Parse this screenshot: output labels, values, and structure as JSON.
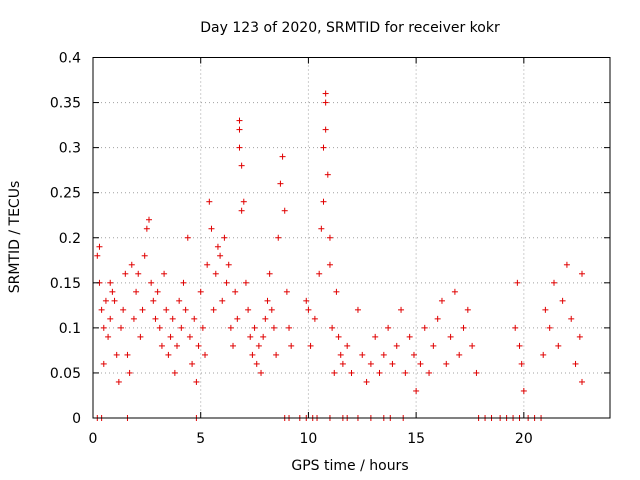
{
  "chart_data": {
    "type": "scatter",
    "title": "Day 123 of 2020, SRMTID for receiver kokr",
    "xlabel": "GPS time / hours",
    "ylabel": "SRMTID / TECUs",
    "xlim": [
      0,
      24
    ],
    "ylim": [
      0,
      0.4
    ],
    "xticks": [
      0,
      5,
      10,
      15,
      20
    ],
    "yticks": [
      0,
      0.05,
      0.1,
      0.15,
      0.2,
      0.25,
      0.3,
      0.35,
      0.4
    ],
    "ytick_labels": [
      "0",
      "0.05",
      "0.1",
      "0.15",
      "0.2",
      "0.25",
      "0.3",
      "0.35",
      "0.4"
    ],
    "xtick_labels": [
      "0",
      "5",
      "10",
      "15",
      "20"
    ],
    "marker": "+",
    "grid": true,
    "color": "#e00000",
    "series": [
      {
        "name": "SRMTID",
        "points": [
          [
            0.2,
            0.0
          ],
          [
            0.4,
            0.0
          ],
          [
            1.6,
            0.0
          ],
          [
            4.8,
            0.0
          ],
          [
            8.9,
            0.0
          ],
          [
            9.1,
            0.0
          ],
          [
            9.6,
            0.0
          ],
          [
            9.9,
            0.0
          ],
          [
            10.2,
            0.0
          ],
          [
            10.4,
            0.0
          ],
          [
            11.0,
            0.0
          ],
          [
            11.6,
            0.0
          ],
          [
            11.8,
            0.0
          ],
          [
            12.3,
            0.0
          ],
          [
            12.9,
            0.0
          ],
          [
            13.5,
            0.0
          ],
          [
            13.8,
            0.0
          ],
          [
            14.4,
            0.0
          ],
          [
            17.9,
            0.0
          ],
          [
            18.2,
            0.0
          ],
          [
            18.5,
            0.0
          ],
          [
            18.9,
            0.0
          ],
          [
            19.2,
            0.0
          ],
          [
            19.5,
            0.0
          ],
          [
            19.8,
            0.0
          ],
          [
            20.2,
            0.0
          ],
          [
            20.5,
            0.0
          ],
          [
            20.8,
            0.0
          ],
          [
            0.2,
            0.18
          ],
          [
            0.3,
            0.19
          ],
          [
            0.3,
            0.15
          ],
          [
            0.4,
            0.12
          ],
          [
            0.5,
            0.1
          ],
          [
            0.5,
            0.06
          ],
          [
            0.6,
            0.13
          ],
          [
            0.7,
            0.09
          ],
          [
            0.8,
            0.11
          ],
          [
            0.8,
            0.15
          ],
          [
            0.9,
            0.14
          ],
          [
            1.0,
            0.13
          ],
          [
            1.1,
            0.07
          ],
          [
            1.2,
            0.04
          ],
          [
            1.3,
            0.1
          ],
          [
            1.4,
            0.12
          ],
          [
            1.5,
            0.16
          ],
          [
            1.6,
            0.07
          ],
          [
            1.7,
            0.05
          ],
          [
            1.8,
            0.17
          ],
          [
            1.9,
            0.11
          ],
          [
            2.0,
            0.14
          ],
          [
            2.1,
            0.16
          ],
          [
            2.2,
            0.09
          ],
          [
            2.3,
            0.12
          ],
          [
            2.4,
            0.18
          ],
          [
            2.5,
            0.21
          ],
          [
            2.6,
            0.22
          ],
          [
            2.7,
            0.15
          ],
          [
            2.8,
            0.13
          ],
          [
            2.9,
            0.11
          ],
          [
            3.0,
            0.14
          ],
          [
            3.1,
            0.1
          ],
          [
            3.2,
            0.08
          ],
          [
            3.3,
            0.16
          ],
          [
            3.4,
            0.12
          ],
          [
            3.5,
            0.07
          ],
          [
            3.6,
            0.09
          ],
          [
            3.7,
            0.11
          ],
          [
            3.8,
            0.05
          ],
          [
            3.9,
            0.08
          ],
          [
            4.0,
            0.13
          ],
          [
            4.1,
            0.1
          ],
          [
            4.2,
            0.15
          ],
          [
            4.3,
            0.12
          ],
          [
            4.4,
            0.2
          ],
          [
            4.5,
            0.09
          ],
          [
            4.6,
            0.06
          ],
          [
            4.7,
            0.11
          ],
          [
            4.8,
            0.04
          ],
          [
            4.9,
            0.08
          ],
          [
            5.0,
            0.14
          ],
          [
            5.1,
            0.1
          ],
          [
            5.2,
            0.07
          ],
          [
            5.3,
            0.17
          ],
          [
            5.4,
            0.24
          ],
          [
            5.5,
            0.21
          ],
          [
            5.6,
            0.12
          ],
          [
            5.7,
            0.16
          ],
          [
            5.8,
            0.19
          ],
          [
            5.9,
            0.18
          ],
          [
            6.0,
            0.13
          ],
          [
            6.1,
            0.2
          ],
          [
            6.2,
            0.15
          ],
          [
            6.3,
            0.17
          ],
          [
            6.4,
            0.1
          ],
          [
            6.5,
            0.08
          ],
          [
            6.6,
            0.14
          ],
          [
            6.7,
            0.11
          ],
          [
            6.8,
            0.33
          ],
          [
            6.8,
            0.32
          ],
          [
            6.8,
            0.3
          ],
          [
            6.9,
            0.28
          ],
          [
            6.9,
            0.23
          ],
          [
            7.0,
            0.24
          ],
          [
            7.1,
            0.15
          ],
          [
            7.2,
            0.12
          ],
          [
            7.3,
            0.09
          ],
          [
            7.4,
            0.07
          ],
          [
            7.5,
            0.1
          ],
          [
            7.6,
            0.06
          ],
          [
            7.7,
            0.08
          ],
          [
            7.8,
            0.05
          ],
          [
            7.9,
            0.09
          ],
          [
            8.0,
            0.11
          ],
          [
            8.1,
            0.13
          ],
          [
            8.2,
            0.16
          ],
          [
            8.3,
            0.12
          ],
          [
            8.4,
            0.1
          ],
          [
            8.5,
            0.07
          ],
          [
            8.6,
            0.2
          ],
          [
            8.7,
            0.26
          ],
          [
            8.8,
            0.29
          ],
          [
            8.9,
            0.23
          ],
          [
            9.0,
            0.14
          ],
          [
            9.1,
            0.1
          ],
          [
            9.2,
            0.08
          ],
          [
            9.9,
            0.13
          ],
          [
            10.0,
            0.12
          ],
          [
            10.1,
            0.08
          ],
          [
            10.3,
            0.11
          ],
          [
            10.5,
            0.16
          ],
          [
            10.6,
            0.21
          ],
          [
            10.7,
            0.24
          ],
          [
            10.7,
            0.3
          ],
          [
            10.8,
            0.32
          ],
          [
            10.8,
            0.35
          ],
          [
            10.8,
            0.36
          ],
          [
            10.9,
            0.27
          ],
          [
            11.0,
            0.2
          ],
          [
            11.0,
            0.17
          ],
          [
            11.1,
            0.1
          ],
          [
            11.2,
            0.05
          ],
          [
            11.3,
            0.14
          ],
          [
            11.4,
            0.09
          ],
          [
            11.5,
            0.07
          ],
          [
            11.6,
            0.06
          ],
          [
            11.8,
            0.08
          ],
          [
            12.0,
            0.05
          ],
          [
            12.3,
            0.12
          ],
          [
            12.5,
            0.07
          ],
          [
            12.7,
            0.04
          ],
          [
            12.9,
            0.06
          ],
          [
            13.1,
            0.09
          ],
          [
            13.3,
            0.05
          ],
          [
            13.5,
            0.07
          ],
          [
            13.7,
            0.1
          ],
          [
            13.9,
            0.06
          ],
          [
            14.1,
            0.08
          ],
          [
            14.3,
            0.12
          ],
          [
            14.5,
            0.05
          ],
          [
            14.7,
            0.09
          ],
          [
            14.9,
            0.07
          ],
          [
            15.0,
            0.03
          ],
          [
            15.2,
            0.06
          ],
          [
            15.4,
            0.1
          ],
          [
            15.6,
            0.05
          ],
          [
            15.8,
            0.08
          ],
          [
            16.0,
            0.11
          ],
          [
            16.2,
            0.13
          ],
          [
            16.4,
            0.06
          ],
          [
            16.6,
            0.09
          ],
          [
            16.8,
            0.14
          ],
          [
            17.0,
            0.07
          ],
          [
            17.2,
            0.1
          ],
          [
            17.4,
            0.12
          ],
          [
            17.6,
            0.08
          ],
          [
            17.8,
            0.05
          ],
          [
            19.6,
            0.1
          ],
          [
            19.7,
            0.15
          ],
          [
            19.8,
            0.08
          ],
          [
            19.9,
            0.06
          ],
          [
            20.0,
            0.03
          ],
          [
            20.9,
            0.07
          ],
          [
            21.0,
            0.12
          ],
          [
            21.2,
            0.1
          ],
          [
            21.4,
            0.15
          ],
          [
            21.6,
            0.08
          ],
          [
            21.8,
            0.13
          ],
          [
            22.0,
            0.17
          ],
          [
            22.2,
            0.11
          ],
          [
            22.4,
            0.06
          ],
          [
            22.6,
            0.09
          ],
          [
            22.7,
            0.16
          ],
          [
            22.7,
            0.04
          ]
        ]
      }
    ]
  }
}
